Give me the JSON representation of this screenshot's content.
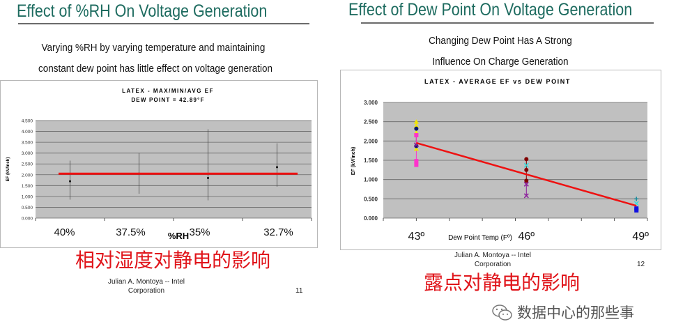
{
  "left_slide": {
    "title": "Effect  of %RH On Voltage Generation",
    "subtitle_lines": [
      "Varying %RH by varying temperature and maintaining",
      "constant dew point has little effect on voltage generation"
    ],
    "footer_author": "Julian A. Montoya -- Intel",
    "footer_company": "Corporation",
    "page_number": "11",
    "caption_cn": "相对湿度对静电的影响"
  },
  "right_slide": {
    "title": "Effect  of Dew Point On Voltage Generation",
    "subtitle_lines": [
      "Changing Dew Point Has A Strong",
      "Influence On Charge Generation"
    ],
    "footer_author": "Julian A. Montoya -- Intel",
    "footer_company": "Corporation",
    "page_number": "12",
    "caption_cn": "露点对静电的影响"
  },
  "watermark": {
    "text": "数据中心的那些事",
    "icon": "wechat-icon"
  },
  "colors": {
    "title": "#1d6b5f",
    "trend_line": "#ee1111",
    "plot_bg": "#c0c0c0",
    "caption": "#e0141a"
  },
  "chart_data": [
    {
      "type": "scatter",
      "title": "LATEX  - MAX/MIN/AVG EF",
      "subtitle": "DEW POINT = 42.89°F",
      "xlabel": "%RH",
      "ylabel": "EF (kV/inch)",
      "categories": [
        "40%",
        "37.5%",
        "35%",
        "32.7%"
      ],
      "ylim": [
        0,
        4.5
      ],
      "yticks": [
        "0.000",
        "0.500",
        "1.000",
        "1.500",
        "2.000",
        "2.500",
        "3.000",
        "3.500",
        "4.000",
        "4.500"
      ],
      "grid": true,
      "avg": [
        1.7,
        2.05,
        1.85,
        2.35
      ],
      "max": [
        2.65,
        3.0,
        4.1,
        3.45
      ],
      "min": [
        0.85,
        1.12,
        0.82,
        1.45
      ],
      "reference_line": 2.05
    },
    {
      "type": "scatter",
      "title": "LATEX - AVERAGE EF vs DEW POINT",
      "xlabel": "Dew Point Temp (Fº)",
      "ylabel": "EF (kV/inch)",
      "xticks": [
        {
          "value": 43,
          "label": "43º"
        },
        {
          "value": 46,
          "label": "46º"
        },
        {
          "value": 49,
          "label": "49º"
        }
      ],
      "xlim": [
        42.1,
        49.3
      ],
      "ylim": [
        0,
        3
      ],
      "yticks": [
        "0.000",
        "0.500",
        "1.000",
        "1.500",
        "2.000",
        "2.500",
        "3.000"
      ],
      "grid": true,
      "series": [
        {
          "color": "#f2e600",
          "marker": "triangle",
          "x": 43,
          "values": [
            2.5,
            2.4,
            2.22,
            1.8
          ]
        },
        {
          "color": "#0a1a6e",
          "marker": "circle",
          "x": 43,
          "values": [
            2.32,
            1.87
          ]
        },
        {
          "color": "#ff33cc",
          "marker": "square",
          "x": 43,
          "values": [
            2.15,
            1.48,
            1.38
          ]
        },
        {
          "color": "#8a1a9a",
          "marker": "x",
          "x": 43,
          "values": [
            1.9
          ]
        },
        {
          "color": "#800000",
          "marker": "circle",
          "x": 46,
          "values": [
            1.53,
            1.25,
            0.97
          ]
        },
        {
          "color": "#33dddd",
          "marker": "x",
          "x": 46,
          "values": [
            1.37
          ]
        },
        {
          "color": "#8a1a9a",
          "marker": "x",
          "x": 46,
          "values": [
            0.88,
            0.58
          ]
        },
        {
          "color": "#1a8a9a",
          "marker": "plus",
          "x": 49,
          "values": [
            0.5
          ]
        },
        {
          "color": "#33dddd",
          "marker": "x",
          "x": 49,
          "values": [
            0.38
          ]
        },
        {
          "color": "#1010e0",
          "marker": "square",
          "x": 49,
          "values": [
            0.25,
            0.2
          ]
        }
      ],
      "trend_line": {
        "x": [
          43,
          49
        ],
        "y": [
          1.95,
          0.32
        ]
      }
    }
  ]
}
